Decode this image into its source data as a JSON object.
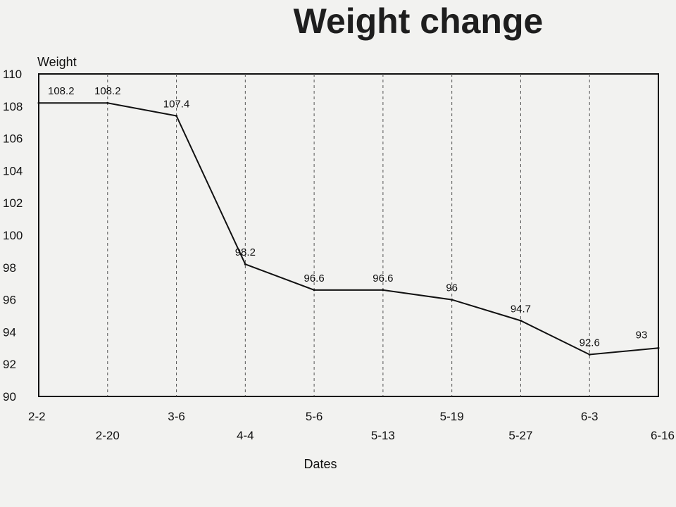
{
  "chart_data": {
    "type": "line",
    "title": "Weight change",
    "ylabel": "Weight",
    "xlabel": "Dates",
    "ylim": [
      90,
      110
    ],
    "yticks": [
      90,
      92,
      94,
      96,
      98,
      100,
      102,
      104,
      106,
      108,
      110
    ],
    "categories": [
      "2-2",
      "2-20",
      "3-6",
      "4-4",
      "5-6",
      "5-13",
      "5-19",
      "5-27",
      "6-3",
      "6-16"
    ],
    "values": [
      108.2,
      108.2,
      107.4,
      98.2,
      96.6,
      96.6,
      96,
      94.7,
      92.6,
      93
    ],
    "data_labels": [
      "108.2",
      "108.2",
      "107.4",
      "98.2",
      "96.6",
      "96.6",
      "96",
      "94.7",
      "92.6",
      "93"
    ],
    "grid": "vertical dashed",
    "legend": "none"
  },
  "colors": {
    "background": "#f2f2f0",
    "line": "#111111",
    "grid": "#555555"
  }
}
